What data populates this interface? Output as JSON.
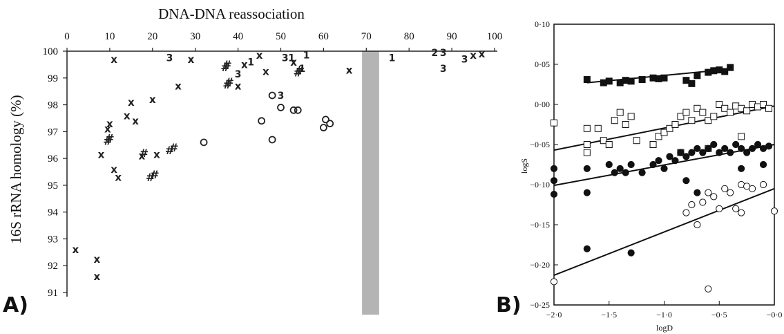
{
  "panels": {
    "a_label": "A)",
    "b_label": "B)"
  },
  "chart_data": [
    {
      "type": "scatter",
      "panel": "A",
      "xlabel": "DNA-DNA reassociation",
      "ylabel": "16S rRNA homology (%)",
      "x_axis_position": "top",
      "xlim": [
        0,
        100
      ],
      "ylim": [
        91,
        100
      ],
      "x_ticks": [
        "0",
        "10",
        "20",
        "30",
        "40",
        "50",
        "60",
        "70",
        "80",
        "90",
        "100"
      ],
      "y_ticks": [
        "100",
        "99",
        "98",
        "97",
        "96",
        "95",
        "94",
        "93",
        "92",
        "91"
      ],
      "shaded_band": {
        "x_range": [
          69,
          73
        ],
        "color": "#b4b4b4"
      },
      "marker_colors": {
        "main": "#222222"
      },
      "points": [
        {
          "s": "x",
          "x": 2,
          "y": 92.6
        },
        {
          "s": "x",
          "x": 7,
          "y": 92.25
        },
        {
          "s": "x",
          "x": 7,
          "y": 91.6
        },
        {
          "s": "x",
          "x": 8,
          "y": 96.15
        },
        {
          "s": "x",
          "x": 9.5,
          "y": 97.1
        },
        {
          "s": "x",
          "x": 10,
          "y": 97.3
        },
        {
          "s": "x",
          "x": 11,
          "y": 99.7
        },
        {
          "s": "x",
          "x": 11,
          "y": 95.6
        },
        {
          "s": "x",
          "x": 12,
          "y": 95.3
        },
        {
          "s": "x",
          "x": 14,
          "y": 97.6
        },
        {
          "s": "x",
          "x": 15,
          "y": 98.1
        },
        {
          "s": "x",
          "x": 16,
          "y": 97.4
        },
        {
          "s": "x",
          "x": 17.5,
          "y": 96.1
        },
        {
          "s": "x",
          "x": 20,
          "y": 98.2
        },
        {
          "s": "x",
          "x": 21,
          "y": 96.15
        },
        {
          "s": "x",
          "x": 26,
          "y": 98.7
        },
        {
          "s": "x",
          "x": 29,
          "y": 99.7
        },
        {
          "s": "x",
          "x": 40,
          "y": 98.7
        },
        {
          "s": "x",
          "x": 41.5,
          "y": 99.5
        },
        {
          "s": "x",
          "x": 45,
          "y": 99.85
        },
        {
          "s": "x",
          "x": 46.5,
          "y": 99.25
        },
        {
          "s": "x",
          "x": 53,
          "y": 99.6
        },
        {
          "s": "x",
          "x": 66,
          "y": 99.3
        },
        {
          "s": "x",
          "x": 95,
          "y": 99.85
        },
        {
          "s": "x",
          "x": 97,
          "y": 99.9
        },
        {
          "s": "#",
          "x": 9.5,
          "y": 96.65
        },
        {
          "s": "#",
          "x": 10,
          "y": 96.75
        },
        {
          "s": "#",
          "x": 18,
          "y": 96.2
        },
        {
          "s": "#",
          "x": 19.5,
          "y": 95.3
        },
        {
          "s": "#",
          "x": 20.5,
          "y": 95.4
        },
        {
          "s": "#",
          "x": 24,
          "y": 96.3
        },
        {
          "s": "#",
          "x": 25,
          "y": 96.4
        },
        {
          "s": "#",
          "x": 37,
          "y": 99.4
        },
        {
          "s": "#",
          "x": 37.5,
          "y": 99.5
        },
        {
          "s": "#",
          "x": 37.5,
          "y": 98.75
        },
        {
          "s": "#",
          "x": 38,
          "y": 98.85
        },
        {
          "s": "#",
          "x": 54,
          "y": 99.2
        },
        {
          "s": "#",
          "x": 54.5,
          "y": 99.3
        },
        {
          "s": "o",
          "x": 32,
          "y": 96.6
        },
        {
          "s": "o",
          "x": 45.5,
          "y": 97.4
        },
        {
          "s": "o",
          "x": 48,
          "y": 96.7
        },
        {
          "s": "o",
          "x": 48,
          "y": 98.35
        },
        {
          "s": "o",
          "x": 50,
          "y": 97.9
        },
        {
          "s": "o",
          "x": 53,
          "y": 97.8
        },
        {
          "s": "o",
          "x": 54,
          "y": 97.8
        },
        {
          "s": "o",
          "x": 60,
          "y": 97.15
        },
        {
          "s": "o",
          "x": 60.5,
          "y": 97.45
        },
        {
          "s": "o",
          "x": 61.5,
          "y": 97.3
        },
        {
          "s": "3",
          "x": 24,
          "y": 99.75
        },
        {
          "s": "3",
          "x": 40,
          "y": 99.15
        },
        {
          "s": "3",
          "x": 50,
          "y": 98.35
        },
        {
          "s": "3",
          "x": 51,
          "y": 99.75
        },
        {
          "s": "3",
          "x": 88,
          "y": 99.95
        },
        {
          "s": "3",
          "x": 88,
          "y": 99.35
        },
        {
          "s": "3",
          "x": 93,
          "y": 99.7
        },
        {
          "s": "1",
          "x": 43,
          "y": 99.6
        },
        {
          "s": "1",
          "x": 52.5,
          "y": 99.75
        },
        {
          "s": "1",
          "x": 55,
          "y": 99.35
        },
        {
          "s": "1",
          "x": 56,
          "y": 99.85
        },
        {
          "s": "1",
          "x": 76,
          "y": 99.75
        },
        {
          "s": "2",
          "x": 86,
          "y": 99.95
        }
      ]
    },
    {
      "type": "scatter",
      "panel": "B",
      "xlabel": "logD",
      "ylabel": "logS",
      "xlim": [
        -2.0,
        0.0
      ],
      "ylim": [
        -0.25,
        0.1
      ],
      "x_ticks": [
        "−2·0",
        "−1·5",
        "−1·0",
        "−0·5",
        "−0·0"
      ],
      "y_ticks": [
        "0·10",
        "0·05",
        "0·00",
        "−0·05",
        "−0·10",
        "−0·15",
        "−0·20",
        "−0·25"
      ],
      "marker_colors": {
        "main": "#111111"
      },
      "series": [
        {
          "marker": "filled-square",
          "x": [
            -1.7,
            -1.55,
            -1.5,
            -1.4,
            -1.35,
            -1.3,
            -1.2,
            -1.1,
            -1.05,
            -1.0,
            -0.8,
            -0.75,
            -0.7,
            -0.6,
            -0.55,
            -0.5,
            -0.45,
            -0.4
          ],
          "y": [
            0.031,
            0.027,
            0.029,
            0.027,
            0.03,
            0.029,
            0.031,
            0.033,
            0.032,
            0.033,
            0.03,
            0.026,
            0.036,
            0.04,
            0.042,
            0.043,
            0.041,
            0.046
          ],
          "fit": [
            [
              -1.7,
              0.027
            ],
            [
              -0.4,
              0.044
            ]
          ]
        },
        {
          "marker": "open-square",
          "x": [
            -2.0,
            -1.7,
            -1.7,
            -1.7,
            -1.6,
            -1.55,
            -1.5,
            -1.45,
            -1.4,
            -1.35,
            -1.3,
            -1.25,
            -1.1,
            -1.05,
            -1.0,
            -0.95,
            -0.9,
            -0.85,
            -0.8,
            -0.75,
            -0.7,
            -0.65,
            -0.6,
            -0.55,
            -0.5,
            -0.45,
            -0.4,
            -0.35,
            -0.3,
            -0.25,
            -0.2,
            -0.15,
            -0.1,
            -0.05,
            -0.85,
            -0.6,
            -0.3
          ],
          "y": [
            -0.023,
            -0.03,
            -0.05,
            -0.06,
            -0.03,
            -0.045,
            -0.05,
            -0.02,
            -0.01,
            -0.025,
            -0.015,
            -0.045,
            -0.05,
            -0.04,
            -0.035,
            -0.03,
            -0.025,
            -0.015,
            -0.01,
            -0.02,
            -0.005,
            -0.01,
            -0.02,
            -0.015,
            0.0,
            -0.005,
            -0.01,
            -0.002,
            -0.005,
            -0.008,
            0.0,
            -0.003,
            0.0,
            -0.005,
            -0.06,
            -0.055,
            -0.04
          ],
          "fit": [
            [
              -2.0,
              -0.057
            ],
            [
              0.0,
              -0.002
            ]
          ]
        },
        {
          "marker": "filled-circle",
          "x": [
            -2.0,
            -2.0,
            -2.0,
            -1.7,
            -1.7,
            -1.7,
            -1.5,
            -1.45,
            -1.4,
            -1.35,
            -1.3,
            -1.3,
            -1.2,
            -1.1,
            -1.05,
            -1.0,
            -0.95,
            -0.9,
            -0.85,
            -0.8,
            -0.75,
            -0.7,
            -0.65,
            -0.6,
            -0.55,
            -0.5,
            -0.45,
            -0.4,
            -0.35,
            -0.3,
            -0.25,
            -0.2,
            -0.15,
            -0.1,
            -0.05,
            -0.8,
            -0.7,
            -0.3,
            -0.1
          ],
          "y": [
            -0.08,
            -0.095,
            -0.112,
            -0.08,
            -0.11,
            -0.18,
            -0.075,
            -0.085,
            -0.08,
            -0.085,
            -0.075,
            -0.185,
            -0.085,
            -0.075,
            -0.07,
            -0.08,
            -0.065,
            -0.07,
            -0.06,
            -0.065,
            -0.06,
            -0.055,
            -0.06,
            -0.055,
            -0.05,
            -0.06,
            -0.055,
            -0.06,
            -0.05,
            -0.055,
            -0.06,
            -0.055,
            -0.05,
            -0.055,
            -0.052,
            -0.095,
            -0.11,
            -0.08,
            -0.075
          ],
          "fit": [
            [
              -2.0,
              -0.101
            ],
            [
              0.0,
              -0.05
            ]
          ]
        },
        {
          "marker": "open-circle",
          "x": [
            -2.0,
            -0.8,
            -0.65,
            -0.6,
            -0.55,
            -0.5,
            -0.45,
            -0.35,
            -0.3,
            -0.25,
            -0.2,
            -0.1,
            0.0,
            -0.7,
            -0.4,
            -0.6,
            -0.75,
            -0.3
          ],
          "y": [
            -0.221,
            -0.135,
            -0.122,
            -0.11,
            -0.115,
            -0.13,
            -0.105,
            -0.13,
            -0.1,
            -0.102,
            -0.105,
            -0.1,
            -0.133,
            -0.15,
            -0.11,
            -0.23,
            -0.125,
            -0.135
          ],
          "fit": [
            [
              -2.0,
              -0.213
            ],
            [
              0.0,
              -0.105
            ]
          ]
        }
      ]
    }
  ]
}
